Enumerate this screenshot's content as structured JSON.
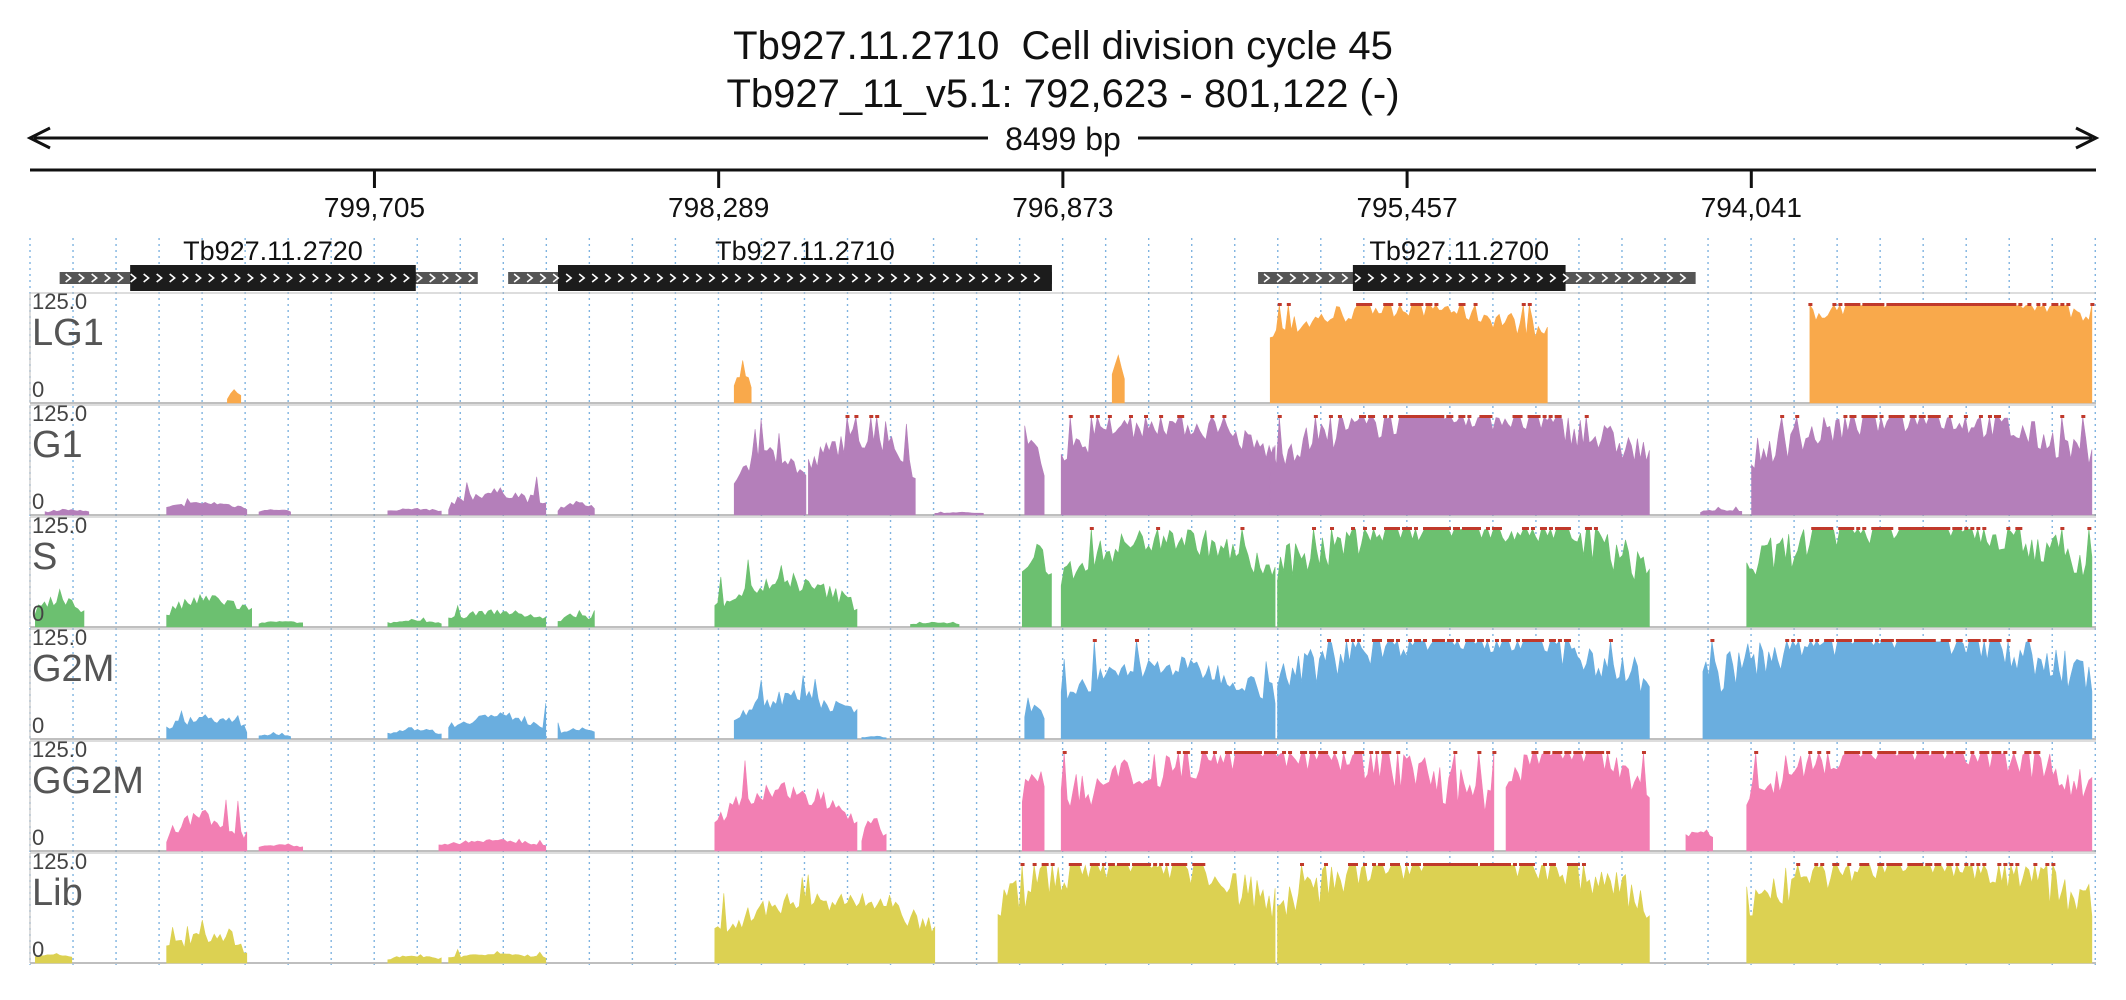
{
  "chart_data": {
    "type": "area",
    "title_lines": [
      "Tb927.11.2710  Cell division cycle 45",
      "Tb927_11_v5.1: 792,623 - 801,122 (-)"
    ],
    "region": {
      "chromosome": "Tb927_11_v5.1",
      "start": 792623,
      "end": 801122,
      "strand": "-",
      "span_label": "8499 bp"
    },
    "x_ticks": [
      799705,
      798289,
      796873,
      795457,
      794041
    ],
    "x_tick_labels": [
      "799,705",
      "798,289",
      "796,873",
      "795,457",
      "794,041"
    ],
    "x_direction": "descending",
    "genes": [
      {
        "name": "Tb927.11.2720",
        "utr": [
          801000,
          799280
        ],
        "cds": [
          800710,
          799535
        ]
      },
      {
        "name": "Tb927.11.2710",
        "utr": [
          799155,
          796918
        ],
        "cds": [
          798950,
          796918
        ]
      },
      {
        "name": "Tb927.11.2700",
        "utr": [
          796070,
          794270
        ],
        "cds": [
          795680,
          794805
        ]
      }
    ],
    "ylim": [
      0,
      125
    ],
    "y_max_label": "125.0",
    "y_min_label": "0",
    "series": [
      {
        "name": "LG1",
        "color": "#f9a94b"
      },
      {
        "name": "G1",
        "color": "#b47fba"
      },
      {
        "name": "S",
        "color": "#6cc070"
      },
      {
        "name": "G2M",
        "color": "#6aaedf"
      },
      {
        "name": "GG2M",
        "color": "#f27fb3"
      },
      {
        "name": "Lib",
        "color": "#dcd152"
      }
    ],
    "segments": [
      [
        [
          800310,
          800255,
          0.04,
          0.15
        ],
        [
          798225,
          798155,
          0.1,
          0.35
        ],
        [
          796670,
          796620,
          0.2,
          0.5
        ],
        [
          796020,
          794880,
          0.6,
          1.1
        ],
        [
          793800,
          792640,
          0.8,
          1.2
        ]
      ],
      [
        [
          801060,
          800880,
          0.02,
          0.06
        ],
        [
          800560,
          800230,
          0.05,
          0.14
        ],
        [
          800180,
          800050,
          0.03,
          0.06
        ],
        [
          799650,
          799430,
          0.03,
          0.07
        ],
        [
          799400,
          799000,
          0.05,
          0.28
        ],
        [
          798950,
          798800,
          0.04,
          0.14
        ],
        [
          798225,
          797930,
          0.3,
          0.72
        ],
        [
          797920,
          797480,
          0.35,
          0.92
        ],
        [
          797400,
          797200,
          0.01,
          0.03
        ],
        [
          797030,
          796950,
          0.4,
          0.85
        ],
        [
          796880,
          796000,
          0.5,
          1.05
        ],
        [
          796020,
          794460,
          0.45,
          1.2
        ],
        [
          794250,
          794080,
          0.02,
          0.06
        ],
        [
          794040,
          792640,
          0.45,
          1.15
        ]
      ],
      [
        [
          801100,
          800900,
          0.1,
          0.33
        ],
        [
          800560,
          800210,
          0.08,
          0.34
        ],
        [
          800180,
          800000,
          0.03,
          0.06
        ],
        [
          799650,
          799430,
          0.03,
          0.07
        ],
        [
          799400,
          799000,
          0.05,
          0.18
        ],
        [
          798950,
          798800,
          0.04,
          0.14
        ],
        [
          798305,
          797720,
          0.15,
          0.52
        ],
        [
          797500,
          797300,
          0.02,
          0.05
        ],
        [
          797040,
          796920,
          0.4,
          0.85
        ],
        [
          796880,
          796000,
          0.4,
          1.05
        ],
        [
          795990,
          794460,
          0.4,
          1.3
        ],
        [
          794060,
          792640,
          0.4,
          1.3
        ]
      ],
      [
        [
          800560,
          800230,
          0.06,
          0.26
        ],
        [
          800180,
          800050,
          0.02,
          0.05
        ],
        [
          799650,
          799430,
          0.04,
          0.12
        ],
        [
          799400,
          799000,
          0.08,
          0.28
        ],
        [
          798950,
          798800,
          0.04,
          0.12
        ],
        [
          798225,
          797720,
          0.15,
          0.5
        ],
        [
          797700,
          797600,
          0.01,
          0.03
        ],
        [
          797030,
          796950,
          0.2,
          0.35
        ],
        [
          796880,
          796000,
          0.35,
          0.85
        ],
        [
          795990,
          794460,
          0.4,
          1.3
        ],
        [
          794240,
          792640,
          0.4,
          1.3
        ]
      ],
      [
        [
          800560,
          800230,
          0.06,
          0.42
        ],
        [
          800180,
          800000,
          0.03,
          0.07
        ],
        [
          799440,
          799000,
          0.04,
          0.12
        ],
        [
          798305,
          797720,
          0.25,
          0.7
        ],
        [
          797700,
          797600,
          0.1,
          0.35
        ],
        [
          797040,
          796950,
          0.5,
          0.85
        ],
        [
          796880,
          795100,
          0.25,
          1.3
        ],
        [
          795050,
          794460,
          0.4,
          1.3
        ],
        [
          794310,
          794200,
          0.1,
          0.25
        ],
        [
          794060,
          792640,
          0.45,
          1.3
        ]
      ],
      [
        [
          801100,
          800950,
          0.05,
          0.1
        ],
        [
          800560,
          800230,
          0.06,
          0.32
        ],
        [
          799650,
          799430,
          0.03,
          0.08
        ],
        [
          799400,
          799000,
          0.04,
          0.1
        ],
        [
          798305,
          797400,
          0.25,
          0.75
        ],
        [
          797140,
          796000,
          0.35,
          1.3
        ],
        [
          795990,
          794460,
          0.4,
          1.3
        ],
        [
          794060,
          792640,
          0.4,
          1.3
        ]
      ]
    ],
    "clip_threshold": 1.0
  }
}
